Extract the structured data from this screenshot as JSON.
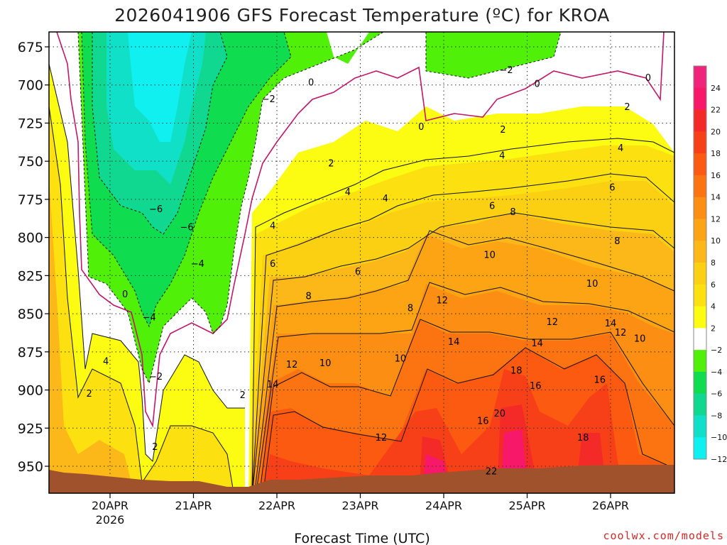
{
  "chart_data": {
    "type": "heatmap",
    "title": "2026041906 GFS Forecast Temperature (ºC) for KROA",
    "xlabel": "Forecast Time (UTC)",
    "ylabel": "",
    "credit": "coolwx.com/models",
    "x_ticks": [
      {
        "label": "20APR",
        "sub": "2026"
      },
      {
        "label": "21APR",
        "sub": ""
      },
      {
        "label": "22APR",
        "sub": ""
      },
      {
        "label": "23APR",
        "sub": ""
      },
      {
        "label": "24APR",
        "sub": ""
      },
      {
        "label": "25APR",
        "sub": ""
      },
      {
        "label": "26APR",
        "sub": ""
      }
    ],
    "y_ticks": [
      "675",
      "700",
      "725",
      "750",
      "775",
      "800",
      "825",
      "850",
      "875",
      "900",
      "925",
      "950"
    ],
    "y_values": [
      675,
      700,
      725,
      750,
      775,
      800,
      825,
      850,
      875,
      900,
      925,
      950
    ],
    "ylim": [
      960,
      670
    ],
    "grid": true,
    "colorbar": {
      "labels": [
        "24",
        "22",
        "20",
        "18",
        "16",
        "14",
        "12",
        "10",
        "8",
        "6",
        "4",
        "2",
        "−2",
        "−4",
        "−6",
        "−8",
        "−10",
        "−12"
      ],
      "colors": [
        "#f0247a",
        "#f8186a",
        "#f42a28",
        "#f84018",
        "#fc5a10",
        "#fc7412",
        "#fc8e14",
        "#fca414",
        "#fcb818",
        "#fcd012",
        "#fce010",
        "#fcfc12",
        "#ffffff",
        "#50f008",
        "#10dc50",
        "#10d890",
        "#10e0c8",
        "#10f0f0"
      ]
    },
    "contour_labels": [
      {
        "text": "0",
        "day": 0.18,
        "level": 837
      },
      {
        "text": "2",
        "day": -0.25,
        "level": 902
      },
      {
        "text": "4",
        "day": -0.05,
        "level": 881
      },
      {
        "text": "−4",
        "day": 0.47,
        "level": 852
      },
      {
        "text": "−2",
        "day": 0.55,
        "level": 891
      },
      {
        "text": "2",
        "day": 0.54,
        "level": 937
      },
      {
        "text": "−6",
        "day": 0.55,
        "level": 781
      },
      {
        "text": "−6",
        "day": 0.92,
        "level": 793
      },
      {
        "text": "−4",
        "day": 1.05,
        "level": 817
      },
      {
        "text": "−2",
        "day": 1.9,
        "level": 709
      },
      {
        "text": "0",
        "day": 2.41,
        "level": 698
      },
      {
        "text": "2",
        "day": 1.59,
        "level": 903
      },
      {
        "text": "2",
        "day": 2.65,
        "level": 751
      },
      {
        "text": "4",
        "day": 1.95,
        "level": 792
      },
      {
        "text": "6",
        "day": 1.95,
        "level": 817
      },
      {
        "text": "4",
        "day": 2.85,
        "level": 770
      },
      {
        "text": "4",
        "day": 3.3,
        "level": 774
      },
      {
        "text": "6",
        "day": 2.97,
        "level": 822
      },
      {
        "text": "8",
        "day": 2.38,
        "level": 838
      },
      {
        "text": "12",
        "day": 2.18,
        "level": 883
      },
      {
        "text": "14",
        "day": 1.95,
        "level": 896
      },
      {
        "text": "10",
        "day": 2.58,
        "level": 882
      },
      {
        "text": "10",
        "day": 3.48,
        "level": 879
      },
      {
        "text": "12",
        "day": 3.25,
        "level": 931
      },
      {
        "text": "8",
        "day": 3.6,
        "level": 846
      },
      {
        "text": "0",
        "day": 3.73,
        "level": 727
      },
      {
        "text": "12",
        "day": 3.98,
        "level": 841
      },
      {
        "text": "14",
        "day": 4.12,
        "level": 868
      },
      {
        "text": "16",
        "day": 4.47,
        "level": 920
      },
      {
        "text": "20",
        "day": 4.67,
        "level": 915
      },
      {
        "text": "18",
        "day": 4.87,
        "level": 887
      },
      {
        "text": "22",
        "day": 4.57,
        "level": 953
      },
      {
        "text": "16",
        "day": 5.1,
        "level": 897
      },
      {
        "text": "14",
        "day": 5.12,
        "level": 869
      },
      {
        "text": "12",
        "day": 5.3,
        "level": 855
      },
      {
        "text": "10",
        "day": 4.55,
        "level": 811
      },
      {
        "text": "8",
        "day": 4.83,
        "level": 783
      },
      {
        "text": "6",
        "day": 4.58,
        "level": 779
      },
      {
        "text": "4",
        "day": 4.7,
        "level": 746
      },
      {
        "text": "2",
        "day": 4.71,
        "level": 729
      },
      {
        "text": "−2",
        "day": 4.75,
        "level": 690
      },
      {
        "text": "0",
        "day": 5.12,
        "level": 699
      },
      {
        "text": "2",
        "day": 6.2,
        "level": 714
      },
      {
        "text": "4",
        "day": 6.12,
        "level": 741
      },
      {
        "text": "6",
        "day": 6.02,
        "level": 767
      },
      {
        "text": "8",
        "day": 6.08,
        "level": 802
      },
      {
        "text": "10",
        "day": 5.78,
        "level": 830
      },
      {
        "text": "14",
        "day": 6.0,
        "level": 856
      },
      {
        "text": "12",
        "day": 6.12,
        "level": 862
      },
      {
        "text": "10",
        "day": 6.35,
        "level": 866
      },
      {
        "text": "16",
        "day": 5.87,
        "level": 893
      },
      {
        "text": "18",
        "day": 5.67,
        "level": 931
      },
      {
        "text": "0",
        "day": 6.45,
        "level": 695
      }
    ]
  }
}
